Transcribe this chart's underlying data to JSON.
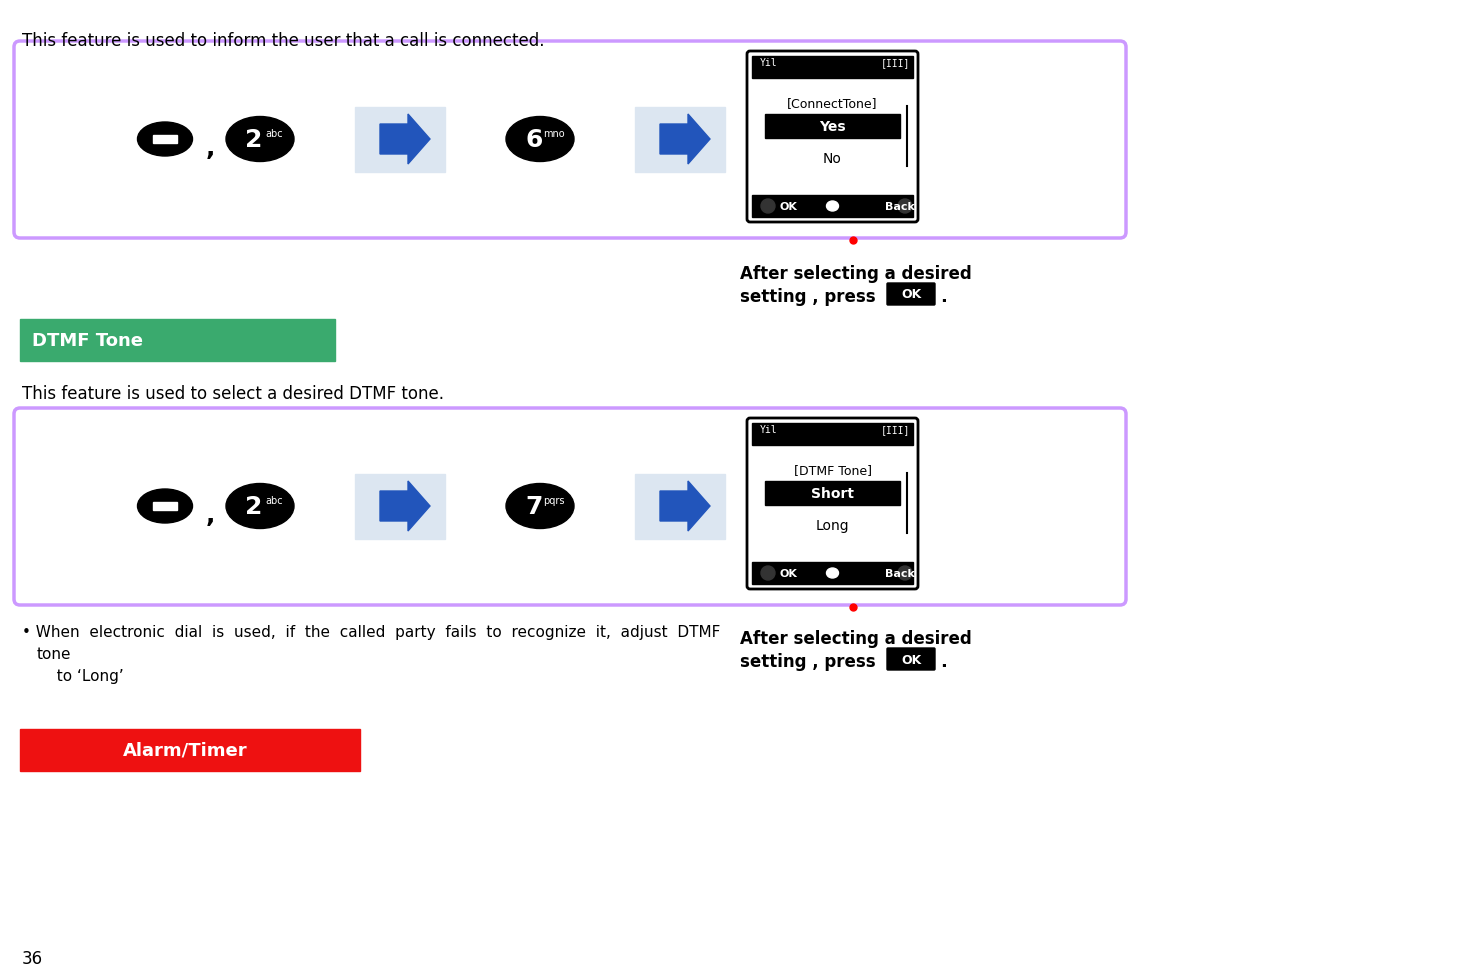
{
  "bg_color": "#ffffff",
  "page_number": "36",
  "top_text": "This feature is used to inform the user that a call is connected.",
  "dtmf_section_text": "This feature is used to select a desired DTMF tone.",
  "dtmf_header": "DTMF Tone",
  "dtmf_header_bg": "#3aaa6e",
  "alarm_header": "Alarm/Timer",
  "alarm_header_bg": "#ee1111",
  "box_border": "#cc99ff",
  "connect_tone_title": "[ConnectTone]",
  "connect_tone_yes": "Yes",
  "connect_tone_no": "No",
  "dtmf_tone_title": "[DTMF Tone]",
  "dtmf_tone_short": "Short",
  "dtmf_tone_long": "Long",
  "after_select_line1": "After selecting a desired",
  "after_select_line2": "setting , press",
  "ok_label": "OK",
  "note_line1": "• When  electronic  dial  is  used,  if  the  called  party  fails  to  recognize  it,  adjust  DTMF",
  "note_line2": "tone",
  "note_line3": "  to ‘Long’",
  "arrow_bg": "#dce6f1",
  "arrow_color": "#2255bb"
}
